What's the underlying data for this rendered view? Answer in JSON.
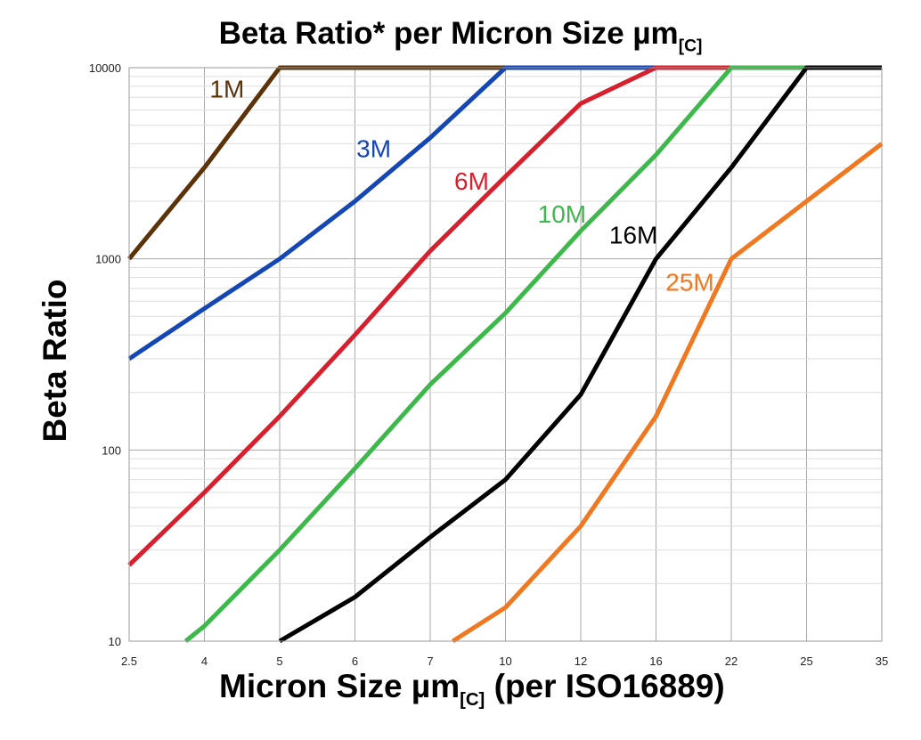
{
  "chart_data": {
    "type": "line",
    "title": {
      "main": "Beta Ratio* per Micron Size µm",
      "subscript": "[C]"
    },
    "xlabel": {
      "main": "Micron Size µm",
      "subscript": "[C]",
      "suffix": " (per ISO16889)"
    },
    "ylabel": "Beta Ratio",
    "y_scale": "log",
    "ylim": [
      10,
      10000
    ],
    "y_ticks": [
      {
        "value": 10,
        "label": "10"
      },
      {
        "value": 100,
        "label": "100"
      },
      {
        "value": 1000,
        "label": "1000"
      },
      {
        "value": 10000,
        "label": "10000"
      }
    ],
    "x_scale": "categorical",
    "categories": [
      "2.5",
      "4",
      "5",
      "6",
      "7",
      "10",
      "12",
      "16",
      "22",
      "25",
      "35"
    ],
    "grid": true,
    "series": [
      {
        "name": "1M",
        "color": "#5c3208",
        "label_at": {
          "x": 1.3,
          "y": 7000
        },
        "points": [
          [
            0,
            1000
          ],
          [
            1,
            3000
          ],
          [
            2,
            10000
          ],
          [
            10,
            10000
          ]
        ]
      },
      {
        "name": "3M",
        "color": "#1446b4",
        "label_at": {
          "x": 3.25,
          "y": 3400
        },
        "points": [
          [
            0,
            300
          ],
          [
            1,
            550
          ],
          [
            2,
            1000
          ],
          [
            3,
            2000
          ],
          [
            4,
            4300
          ],
          [
            5,
            10000
          ],
          [
            10,
            10000
          ]
        ]
      },
      {
        "name": "6M",
        "color": "#d7202e",
        "label_at": {
          "x": 4.55,
          "y": 2300
        },
        "points": [
          [
            0,
            25
          ],
          [
            1,
            60
          ],
          [
            2,
            150
          ],
          [
            3,
            400
          ],
          [
            4,
            1100
          ],
          [
            5,
            2700
          ],
          [
            6,
            6500
          ],
          [
            7,
            10000
          ],
          [
            10,
            10000
          ]
        ]
      },
      {
        "name": "10M",
        "color": "#3db84a",
        "label_at": {
          "x": 5.75,
          "y": 1550
        },
        "points": [
          [
            0.75,
            10
          ],
          [
            1,
            12
          ],
          [
            2,
            30
          ],
          [
            3,
            80
          ],
          [
            4,
            220
          ],
          [
            5,
            520
          ],
          [
            6,
            1400
          ],
          [
            7,
            3500
          ],
          [
            8,
            10000
          ],
          [
            10,
            10000
          ]
        ]
      },
      {
        "name": "16M",
        "color": "#000000",
        "label_at": {
          "x": 6.7,
          "y": 1200
        },
        "points": [
          [
            2,
            10
          ],
          [
            3,
            17
          ],
          [
            4,
            35
          ],
          [
            5,
            70
          ],
          [
            6,
            195
          ],
          [
            7,
            1000
          ],
          [
            8,
            3000
          ],
          [
            9,
            10000
          ],
          [
            10,
            10000
          ]
        ]
      },
      {
        "name": "25M",
        "color": "#f07820",
        "label_at": {
          "x": 7.45,
          "y": 680
        },
        "points": [
          [
            4.3,
            10
          ],
          [
            5,
            15
          ],
          [
            6,
            40
          ],
          [
            7,
            150
          ],
          [
            8,
            1000
          ],
          [
            9,
            2000
          ],
          [
            10,
            4000
          ]
        ]
      }
    ]
  }
}
